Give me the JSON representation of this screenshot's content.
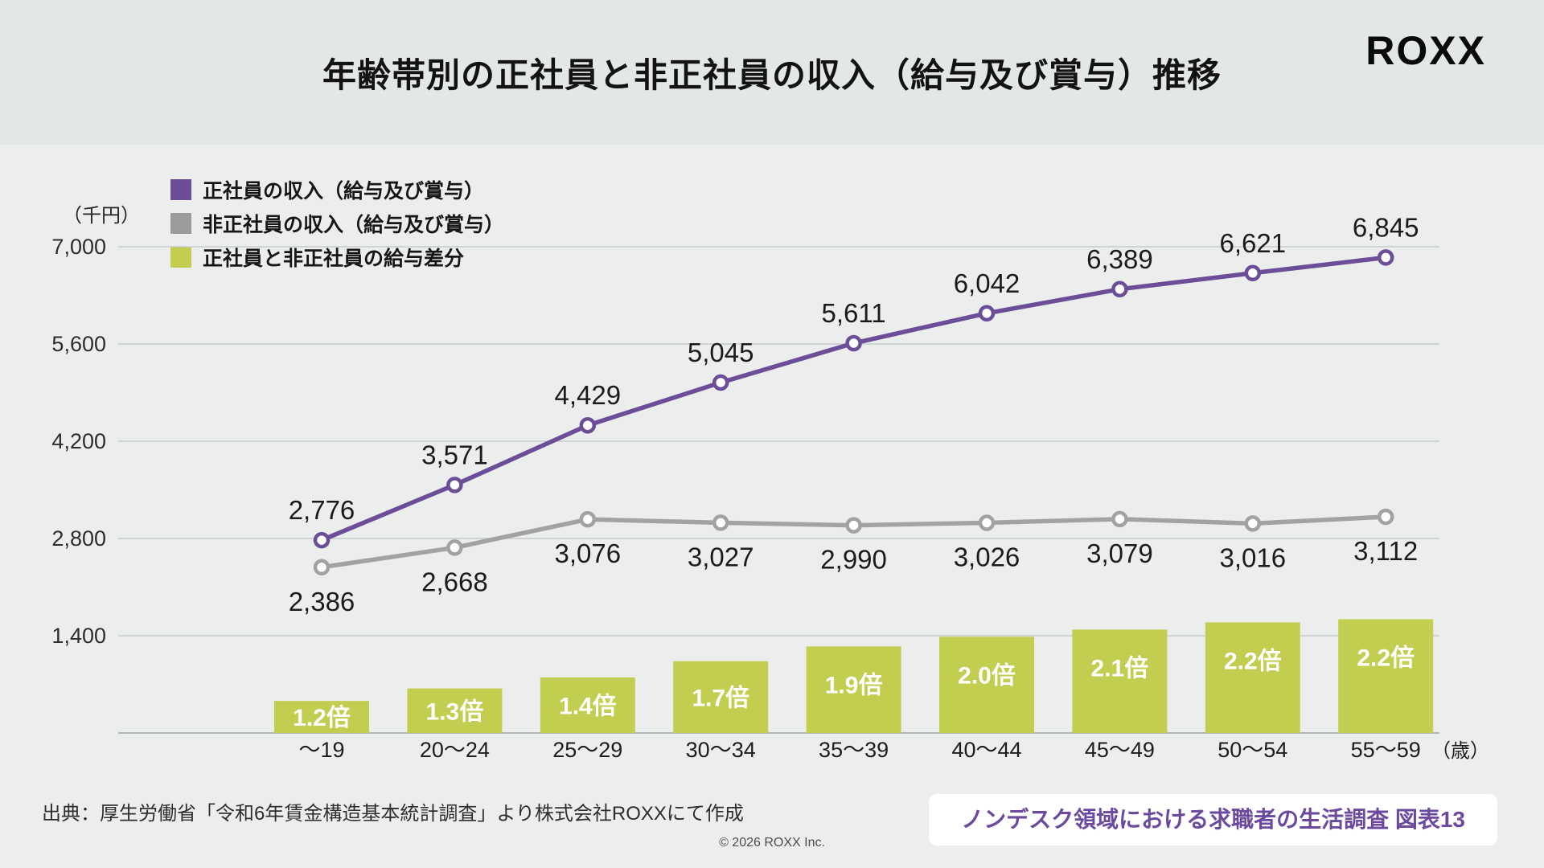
{
  "header": {
    "title": "年齢帯別の正社員と非正社員の収入（給与及び賞与）推移",
    "logo": "ROXX"
  },
  "legend": [
    {
      "label": "正社員の収入（給与及び賞与）",
      "color": "#6b4e97"
    },
    {
      "label": "非正社員の収入（給与及び賞与）",
      "color": "#9b9b9b"
    },
    {
      "label": "正社員と非正社員の給与差分",
      "color": "#c3cd4f"
    }
  ],
  "chart_data": {
    "type": "line+bar",
    "title": "年齢帯別の正社員と非正社員の収入（給与及び賞与）推移",
    "unit_label": "（千円）",
    "x_unit_label": "（歳）",
    "categories": [
      "～19",
      "20～24",
      "25～29",
      "30～34",
      "35～39",
      "40～44",
      "45～49",
      "50～54",
      "55～59"
    ],
    "y_ticks": [
      7000,
      5600,
      4200,
      2800,
      1400
    ],
    "ylim": [
      0,
      7000
    ],
    "grid": true,
    "legend_position": "top-left",
    "series": [
      {
        "name": "正社員の収入（給与及び賞与）",
        "type": "line",
        "color": "#6b4e97",
        "values": [
          2776,
          3571,
          4429,
          5045,
          5611,
          6042,
          6389,
          6621,
          6845
        ]
      },
      {
        "name": "非正社員の収入（給与及び賞与）",
        "type": "line",
        "color": "#a2a2a2",
        "values": [
          2386,
          2668,
          3076,
          3027,
          2990,
          3026,
          3079,
          3016,
          3112
        ]
      },
      {
        "name": "正社員と非正社員の給与差分",
        "type": "bar",
        "color": "#c3cd4f",
        "ratio_labels": [
          "1.2倍",
          "1.3倍",
          "1.4倍",
          "1.7倍",
          "1.9倍",
          "2.0倍",
          "2.1倍",
          "2.2倍",
          "2.2倍"
        ]
      }
    ]
  },
  "footer": {
    "source": "出典：厚生労働省「令和6年賃金構造基本統計調査」より株式会社ROXXにて作成",
    "copyright": "© 2026 ROXX Inc.",
    "badge": "ノンデスク領域における求職者の生活調査 図表13"
  }
}
